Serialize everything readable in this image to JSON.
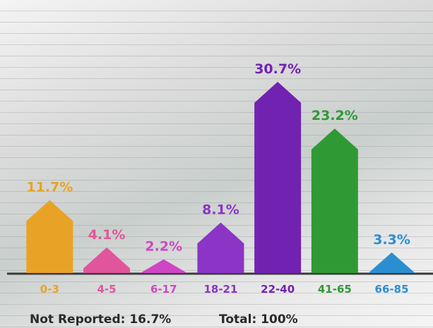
{
  "chart_data": {
    "type": "arrow-bar",
    "categories": [
      "0-3",
      "4-5",
      "6-17",
      "18-21",
      "22-40",
      "41-65",
      "66-85"
    ],
    "values": [
      11.7,
      4.1,
      2.2,
      8.1,
      30.7,
      23.2,
      3.3
    ],
    "value_labels": [
      "11.7%",
      "4.1%",
      "2.2%",
      "8.1%",
      "30.7%",
      "23.2%",
      "3.3%"
    ],
    "colors": [
      "#e8a326",
      "#e0559c",
      "#cf46c4",
      "#8b34c6",
      "#7222b0",
      "#2f9a34",
      "#2a8fd0"
    ],
    "footnotes": [
      "Not Reported: 16.7%",
      "Total: 100%"
    ]
  }
}
